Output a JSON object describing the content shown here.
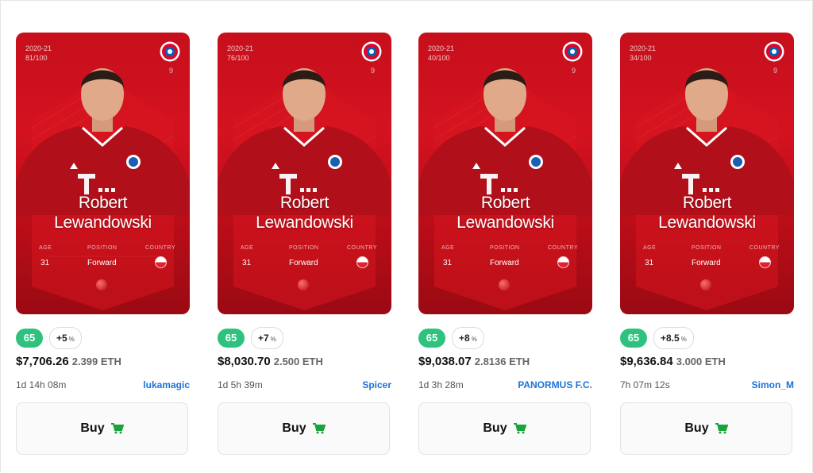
{
  "cards": [
    {
      "season": "2020-21",
      "serial": "81/100",
      "shirt_number": "9",
      "first_name": "Robert",
      "last_name": "Lewandowski",
      "age_label": "AGE",
      "age": "31",
      "position_label": "POSITION",
      "position": "Forward",
      "country_label": "COUNTRY",
      "score": "65",
      "bonus": "+5",
      "bonus_unit": "%",
      "price_usd": "$7,706.26",
      "price_eth": "2.399 ETH",
      "time_left": "1d 14h 08m",
      "seller": "lukamagic",
      "buy_label": "Buy"
    },
    {
      "season": "2020-21",
      "serial": "76/100",
      "shirt_number": "9",
      "first_name": "Robert",
      "last_name": "Lewandowski",
      "age_label": "AGE",
      "age": "31",
      "position_label": "POSITION",
      "position": "Forward",
      "country_label": "COUNTRY",
      "score": "65",
      "bonus": "+7",
      "bonus_unit": "%",
      "price_usd": "$8,030.70",
      "price_eth": "2.500 ETH",
      "time_left": "1d 5h 39m",
      "seller": "Spicer",
      "buy_label": "Buy"
    },
    {
      "season": "2020-21",
      "serial": "40/100",
      "shirt_number": "9",
      "first_name": "Robert",
      "last_name": "Lewandowski",
      "age_label": "AGE",
      "age": "31",
      "position_label": "POSITION",
      "position": "Forward",
      "country_label": "COUNTRY",
      "score": "65",
      "bonus": "+8",
      "bonus_unit": "%",
      "price_usd": "$9,038.07",
      "price_eth": "2.8136 ETH",
      "time_left": "1d 3h 28m",
      "seller": "PANORMUS F.C.",
      "buy_label": "Buy"
    },
    {
      "season": "2020-21",
      "serial": "34/100",
      "shirt_number": "9",
      "first_name": "Robert",
      "last_name": "Lewandowski",
      "age_label": "AGE",
      "age": "31",
      "position_label": "POSITION",
      "position": "Forward",
      "country_label": "COUNTRY",
      "score": "65",
      "bonus": "+8.5",
      "bonus_unit": "%",
      "price_usd": "$9,636.84",
      "price_eth": "3.000 ETH",
      "time_left": "7h 07m 12s",
      "seller": "Simon_M",
      "buy_label": "Buy"
    }
  ],
  "colors": {
    "card_red": "#c70f1c",
    "score_green": "#2ec27e",
    "seller_blue": "#1a73d9",
    "cart_green": "#1aa33a"
  },
  "icons": {
    "club": "club-crest-icon",
    "cart": "shopping-cart-icon",
    "flag": "country-flag-icon",
    "ball": "ball-icon"
  }
}
